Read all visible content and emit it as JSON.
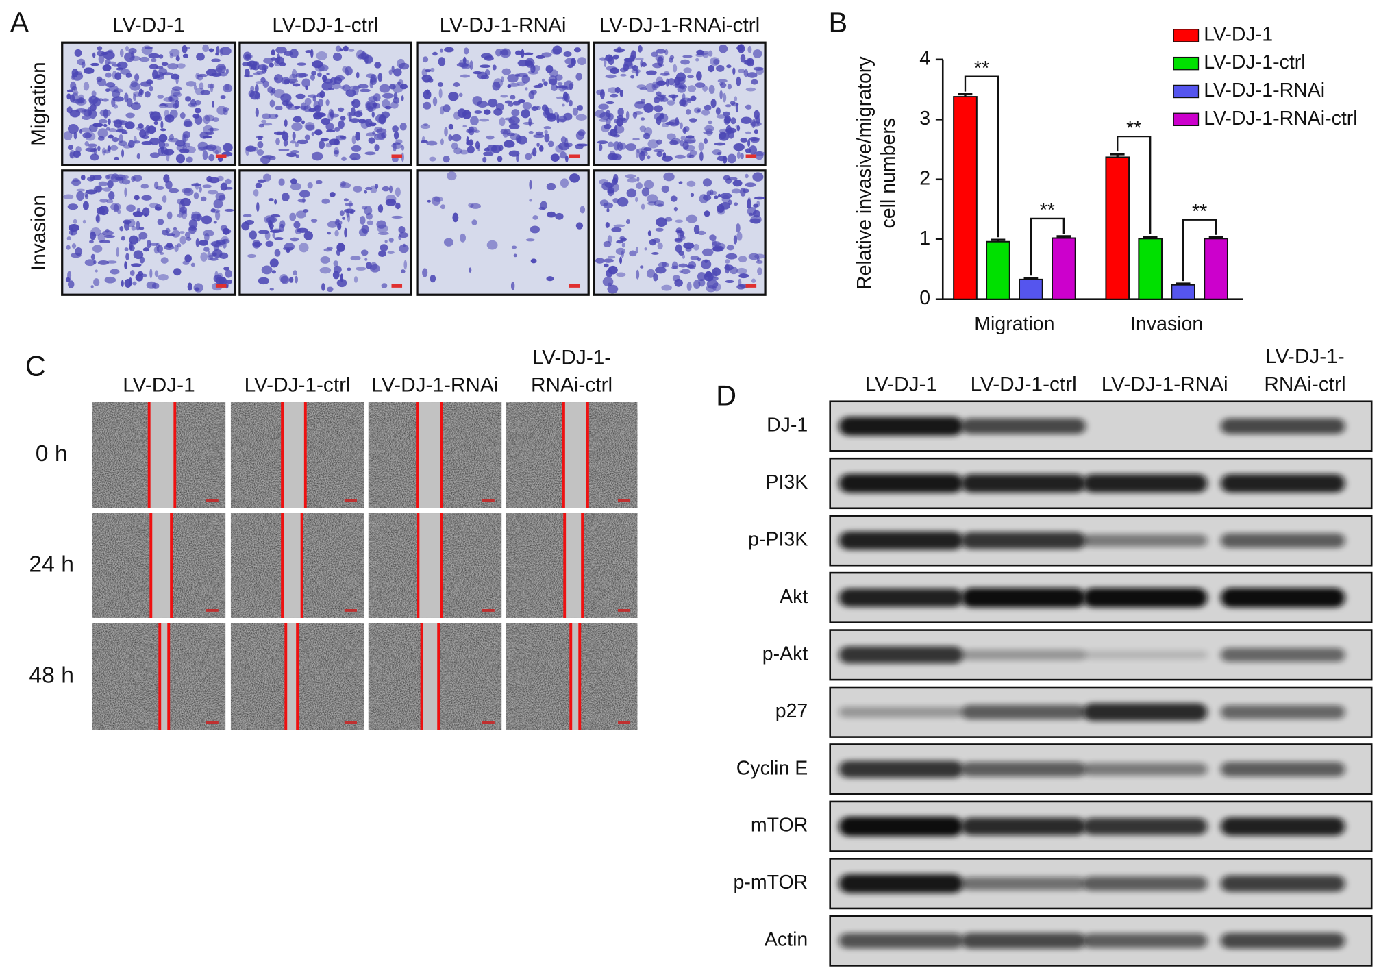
{
  "panel_a": {
    "label": "A",
    "columns": [
      "LV-DJ-1",
      "LV-DJ-1-ctrl",
      "LV-DJ-1-RNAi",
      "LV-DJ-1-RNAi-ctrl"
    ],
    "rows": [
      "Migration",
      "Invasion"
    ]
  },
  "chart_data": {
    "type": "bar",
    "panel_label": "B",
    "y_label": [
      "Relative invasive/migratory",
      "cell numbers"
    ],
    "categories": [
      "Migration",
      "Invasion"
    ],
    "series": [
      {
        "name": "LV-DJ-1",
        "color": "#ff0000",
        "values": [
          3.38,
          2.37
        ],
        "errors": [
          0.04,
          0.05
        ]
      },
      {
        "name": "LV-DJ-1-ctrl",
        "color": "#00e000",
        "values": [
          0.96,
          1.01
        ],
        "errors": [
          0.03,
          0.03
        ]
      },
      {
        "name": "LV-DJ-1-RNAi",
        "color": "#5555ee",
        "values": [
          0.33,
          0.24
        ],
        "errors": [
          0.02,
          0.02
        ]
      },
      {
        "name": "LV-DJ-1-RNAi-ctrl",
        "color": "#cc00cc",
        "values": [
          1.02,
          1.01
        ],
        "errors": [
          0.03,
          0.02
        ]
      }
    ],
    "ylim": [
      0,
      4
    ],
    "yticks": [
      0,
      1,
      2,
      3,
      4
    ],
    "legend": "upper right",
    "annotations": [
      "**",
      "**",
      "**",
      "**"
    ]
  },
  "panel_c": {
    "label": "C",
    "columns": [
      "LV-DJ-1",
      "LV-DJ-1-ctrl",
      "LV-DJ-1-RNAi",
      [
        "LV-DJ-1-",
        "RNAi-ctrl"
      ]
    ],
    "rows": [
      "0 h",
      "24 h",
      "48 h"
    ]
  },
  "panel_d": {
    "label": "D",
    "columns": [
      "LV-DJ-1",
      "LV-DJ-1-ctrl",
      "LV-DJ-1-RNAi",
      [
        "LV-DJ-1-",
        "RNAi-ctrl"
      ]
    ],
    "rows": [
      "DJ-1",
      "PI3K",
      "p-PI3K",
      "Akt",
      "p-Akt",
      "p27",
      "Cyclin E",
      "mTOR",
      "p-mTOR",
      "Actin"
    ]
  }
}
